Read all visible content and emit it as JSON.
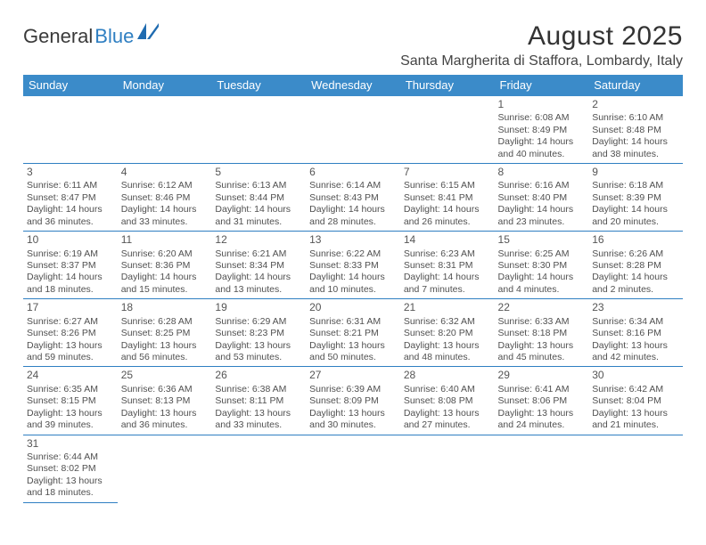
{
  "logo": {
    "part1": "General",
    "part2": "Blue"
  },
  "title": "August 2025",
  "location": "Santa Margherita di Staffora, Lombardy, Italy",
  "colors": {
    "header_bg": "#3b8bc9",
    "header_text": "#ffffff",
    "divider": "#2f7fc2",
    "body_text": "#505050",
    "title_text": "#333333",
    "logo_blue": "#2f7fc2"
  },
  "typography": {
    "title_fontsize": 30,
    "location_fontsize": 16,
    "header_fontsize": 13,
    "cell_fontsize": 10.5,
    "daynum_fontsize": 12
  },
  "weekdays": [
    "Sunday",
    "Monday",
    "Tuesday",
    "Wednesday",
    "Thursday",
    "Friday",
    "Saturday"
  ],
  "grid": [
    [
      null,
      null,
      null,
      null,
      null,
      {
        "d": "1",
        "sr": "Sunrise: 6:08 AM",
        "ss": "Sunset: 8:49 PM",
        "dl": "Daylight: 14 hours and 40 minutes."
      },
      {
        "d": "2",
        "sr": "Sunrise: 6:10 AM",
        "ss": "Sunset: 8:48 PM",
        "dl": "Daylight: 14 hours and 38 minutes."
      }
    ],
    [
      {
        "d": "3",
        "sr": "Sunrise: 6:11 AM",
        "ss": "Sunset: 8:47 PM",
        "dl": "Daylight: 14 hours and 36 minutes."
      },
      {
        "d": "4",
        "sr": "Sunrise: 6:12 AM",
        "ss": "Sunset: 8:46 PM",
        "dl": "Daylight: 14 hours and 33 minutes."
      },
      {
        "d": "5",
        "sr": "Sunrise: 6:13 AM",
        "ss": "Sunset: 8:44 PM",
        "dl": "Daylight: 14 hours and 31 minutes."
      },
      {
        "d": "6",
        "sr": "Sunrise: 6:14 AM",
        "ss": "Sunset: 8:43 PM",
        "dl": "Daylight: 14 hours and 28 minutes."
      },
      {
        "d": "7",
        "sr": "Sunrise: 6:15 AM",
        "ss": "Sunset: 8:41 PM",
        "dl": "Daylight: 14 hours and 26 minutes."
      },
      {
        "d": "8",
        "sr": "Sunrise: 6:16 AM",
        "ss": "Sunset: 8:40 PM",
        "dl": "Daylight: 14 hours and 23 minutes."
      },
      {
        "d": "9",
        "sr": "Sunrise: 6:18 AM",
        "ss": "Sunset: 8:39 PM",
        "dl": "Daylight: 14 hours and 20 minutes."
      }
    ],
    [
      {
        "d": "10",
        "sr": "Sunrise: 6:19 AM",
        "ss": "Sunset: 8:37 PM",
        "dl": "Daylight: 14 hours and 18 minutes."
      },
      {
        "d": "11",
        "sr": "Sunrise: 6:20 AM",
        "ss": "Sunset: 8:36 PM",
        "dl": "Daylight: 14 hours and 15 minutes."
      },
      {
        "d": "12",
        "sr": "Sunrise: 6:21 AM",
        "ss": "Sunset: 8:34 PM",
        "dl": "Daylight: 14 hours and 13 minutes."
      },
      {
        "d": "13",
        "sr": "Sunrise: 6:22 AM",
        "ss": "Sunset: 8:33 PM",
        "dl": "Daylight: 14 hours and 10 minutes."
      },
      {
        "d": "14",
        "sr": "Sunrise: 6:23 AM",
        "ss": "Sunset: 8:31 PM",
        "dl": "Daylight: 14 hours and 7 minutes."
      },
      {
        "d": "15",
        "sr": "Sunrise: 6:25 AM",
        "ss": "Sunset: 8:30 PM",
        "dl": "Daylight: 14 hours and 4 minutes."
      },
      {
        "d": "16",
        "sr": "Sunrise: 6:26 AM",
        "ss": "Sunset: 8:28 PM",
        "dl": "Daylight: 14 hours and 2 minutes."
      }
    ],
    [
      {
        "d": "17",
        "sr": "Sunrise: 6:27 AM",
        "ss": "Sunset: 8:26 PM",
        "dl": "Daylight: 13 hours and 59 minutes."
      },
      {
        "d": "18",
        "sr": "Sunrise: 6:28 AM",
        "ss": "Sunset: 8:25 PM",
        "dl": "Daylight: 13 hours and 56 minutes."
      },
      {
        "d": "19",
        "sr": "Sunrise: 6:29 AM",
        "ss": "Sunset: 8:23 PM",
        "dl": "Daylight: 13 hours and 53 minutes."
      },
      {
        "d": "20",
        "sr": "Sunrise: 6:31 AM",
        "ss": "Sunset: 8:21 PM",
        "dl": "Daylight: 13 hours and 50 minutes."
      },
      {
        "d": "21",
        "sr": "Sunrise: 6:32 AM",
        "ss": "Sunset: 8:20 PM",
        "dl": "Daylight: 13 hours and 48 minutes."
      },
      {
        "d": "22",
        "sr": "Sunrise: 6:33 AM",
        "ss": "Sunset: 8:18 PM",
        "dl": "Daylight: 13 hours and 45 minutes."
      },
      {
        "d": "23",
        "sr": "Sunrise: 6:34 AM",
        "ss": "Sunset: 8:16 PM",
        "dl": "Daylight: 13 hours and 42 minutes."
      }
    ],
    [
      {
        "d": "24",
        "sr": "Sunrise: 6:35 AM",
        "ss": "Sunset: 8:15 PM",
        "dl": "Daylight: 13 hours and 39 minutes."
      },
      {
        "d": "25",
        "sr": "Sunrise: 6:36 AM",
        "ss": "Sunset: 8:13 PM",
        "dl": "Daylight: 13 hours and 36 minutes."
      },
      {
        "d": "26",
        "sr": "Sunrise: 6:38 AM",
        "ss": "Sunset: 8:11 PM",
        "dl": "Daylight: 13 hours and 33 minutes."
      },
      {
        "d": "27",
        "sr": "Sunrise: 6:39 AM",
        "ss": "Sunset: 8:09 PM",
        "dl": "Daylight: 13 hours and 30 minutes."
      },
      {
        "d": "28",
        "sr": "Sunrise: 6:40 AM",
        "ss": "Sunset: 8:08 PM",
        "dl": "Daylight: 13 hours and 27 minutes."
      },
      {
        "d": "29",
        "sr": "Sunrise: 6:41 AM",
        "ss": "Sunset: 8:06 PM",
        "dl": "Daylight: 13 hours and 24 minutes."
      },
      {
        "d": "30",
        "sr": "Sunrise: 6:42 AM",
        "ss": "Sunset: 8:04 PM",
        "dl": "Daylight: 13 hours and 21 minutes."
      }
    ],
    [
      {
        "d": "31",
        "sr": "Sunrise: 6:44 AM",
        "ss": "Sunset: 8:02 PM",
        "dl": "Daylight: 13 hours and 18 minutes."
      },
      null,
      null,
      null,
      null,
      null,
      null
    ]
  ]
}
